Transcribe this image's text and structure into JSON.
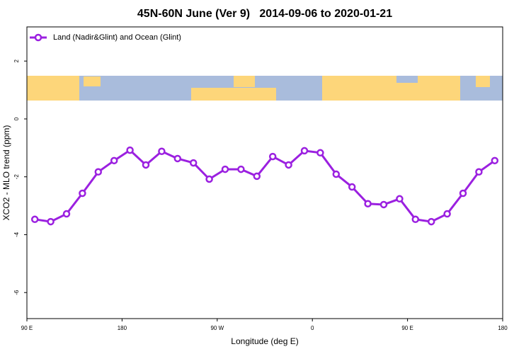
{
  "chart_data": {
    "type": "line",
    "title": "45N-60N June (Ver 9)   2014-09-06 to 2020-01-21",
    "x_label": "Longitude (deg E)",
    "y_label": "XCO2 - MLO trend (ppm)",
    "x": [
      97.5,
      112.5,
      127.5,
      142.5,
      157.5,
      172.5,
      187.5,
      202.5,
      217.5,
      232.5,
      247.5,
      262.5,
      277.5,
      292.5,
      307.5,
      322.5,
      337.5,
      352.5,
      367.5,
      382.5,
      397.5,
      412.5,
      427.5,
      442.5,
      457.5,
      472.5,
      487.5,
      502.5,
      517.5,
      532.5
    ],
    "series": [
      {
        "name": "Land (Nadir&Glint) and Ocean (Glint)",
        "color": "#9b20e0",
        "values": [
          -3.47,
          -3.55,
          -3.28,
          -2.57,
          -1.83,
          -1.44,
          -1.08,
          -1.59,
          -1.12,
          -1.37,
          -1.52,
          -2.08,
          -1.74,
          -1.74,
          -1.98,
          -1.3,
          -1.59,
          -1.1,
          -1.17,
          -1.91,
          -2.35,
          -2.93,
          -2.96,
          -2.76,
          -3.47,
          -3.55,
          -3.28,
          -2.57,
          -1.83,
          -1.44
        ]
      }
    ],
    "xlim": [
      90,
      540
    ],
    "xticks": [
      {
        "value": 90,
        "label": "90 E"
      },
      180,
      {
        "value": 270,
        "label": "90 W"
      },
      {
        "value": 360,
        "label": "0"
      },
      {
        "value": 450,
        "label": "90 E"
      },
      {
        "value": 540,
        "label": "180"
      }
    ],
    "ylim": [
      -6.9,
      3.18
    ],
    "yticks": [
      -6,
      -4,
      -2,
      0,
      2
    ],
    "legend": "top-left"
  }
}
